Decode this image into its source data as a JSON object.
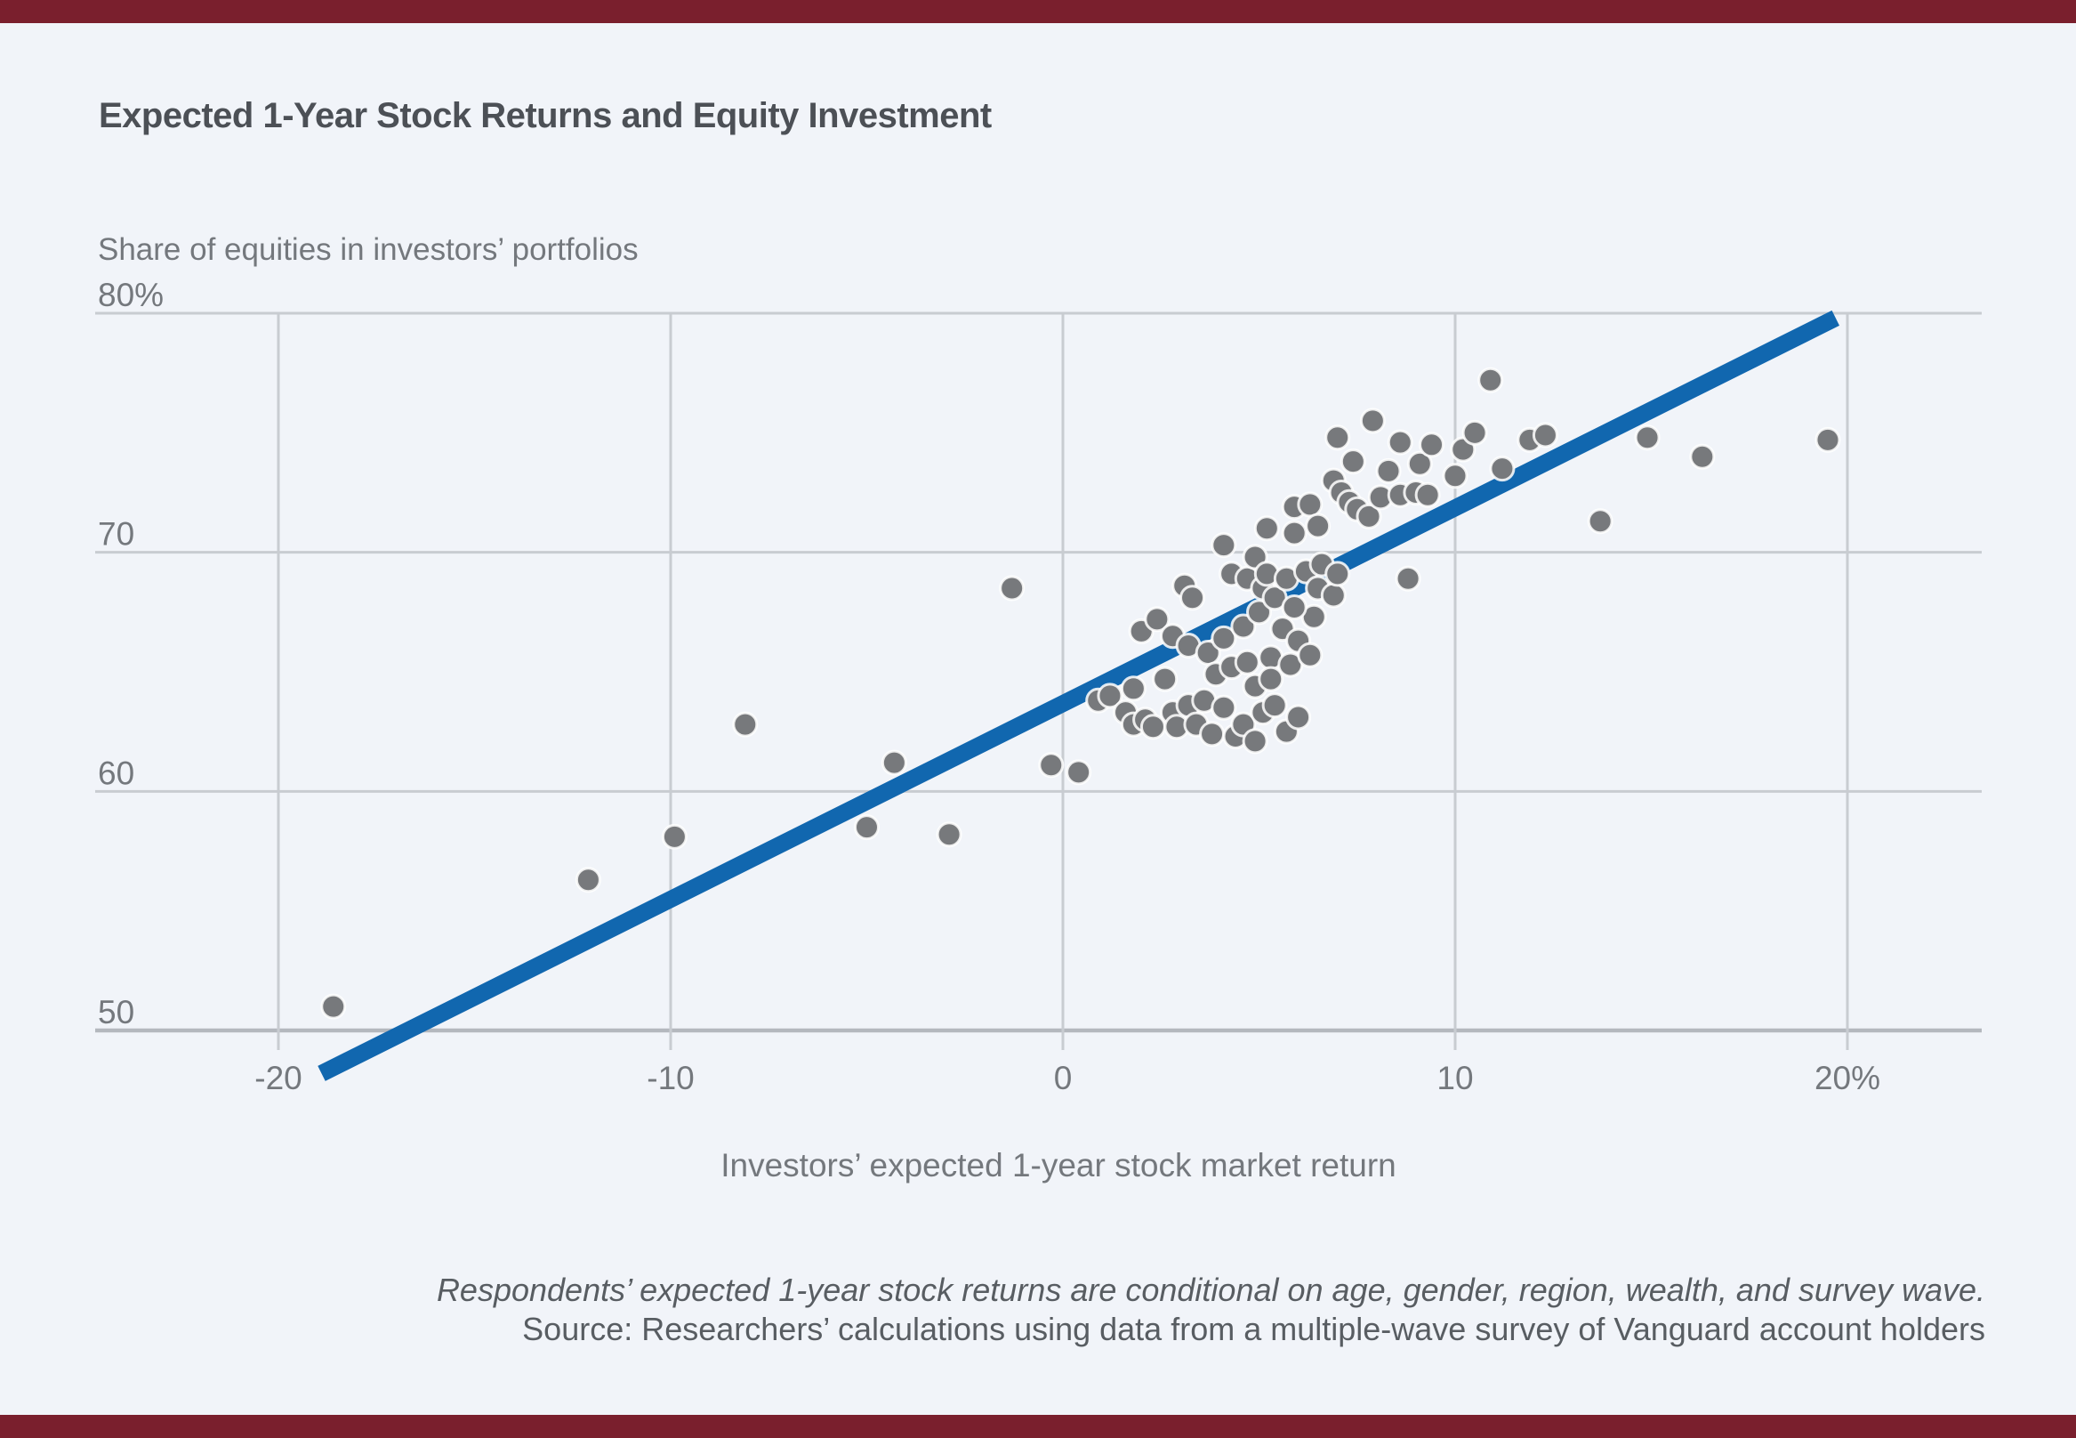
{
  "title": "Expected 1-Year Stock Returns and Equity Investment",
  "colors": {
    "background": "#f1f4f9",
    "accent_bar": "#7a1f2d",
    "gridline": "#c8ccd1",
    "axis_line": "#b4b8be",
    "point": "#77797c",
    "trend_line": "#1167af",
    "title_text": "#4c5056",
    "label_text": "#74787d",
    "footnote_text": "#585d62"
  },
  "chart_data": {
    "type": "scatter",
    "title": "Expected 1-Year Stock Returns and Equity Investment",
    "y_axis_title": "Share of equities in investors’ portfolios",
    "x_axis_title": "Investors’ expected 1-year stock market return",
    "footnote_line1": "Respondents’ expected 1-year stock returns are conditional on age, gender, region, wealth, and survey wave.",
    "footnote_line2": "Source: Researchers’ calculations using data from a multiple-wave survey of Vanguard account holders",
    "grid": true,
    "legend": "none",
    "xlim": [
      -24.7,
      23.4
    ],
    "ylim": [
      50,
      80
    ],
    "x_ticks": [
      {
        "label": "-20",
        "value": -20
      },
      {
        "label": "-10",
        "value": -10
      },
      {
        "label": "0",
        "value": 0
      },
      {
        "label": "10",
        "value": 10
      },
      {
        "label": "20%",
        "value": 20
      }
    ],
    "y_ticks": [
      {
        "label": "80%",
        "value": 80
      },
      {
        "label": "70",
        "value": 70
      },
      {
        "label": "60",
        "value": 60
      },
      {
        "label": "50",
        "value": 50
      }
    ],
    "trend_line": {
      "x1": -18.9,
      "y1": 48.2,
      "x2": 19.7,
      "y2": 79.8
    },
    "points": [
      [
        -18.6,
        51.0
      ],
      [
        -12.1,
        56.3
      ],
      [
        -9.9,
        58.1
      ],
      [
        -8.1,
        62.8
      ],
      [
        -5.0,
        58.5
      ],
      [
        -4.3,
        61.2
      ],
      [
        -2.9,
        58.2
      ],
      [
        -1.3,
        68.5
      ],
      [
        -0.3,
        61.1
      ],
      [
        0.4,
        60.8
      ],
      [
        0.9,
        63.8
      ],
      [
        1.2,
        64.0
      ],
      [
        1.6,
        63.3
      ],
      [
        1.8,
        64.3
      ],
      [
        1.8,
        62.8
      ],
      [
        2.1,
        63.0
      ],
      [
        2.3,
        62.7
      ],
      [
        2.6,
        64.7
      ],
      [
        2.8,
        63.3
      ],
      [
        2.9,
        62.7
      ],
      [
        3.2,
        63.6
      ],
      [
        3.4,
        62.8
      ],
      [
        3.6,
        63.8
      ],
      [
        3.8,
        62.4
      ],
      [
        4.1,
        63.5
      ],
      [
        4.4,
        62.3
      ],
      [
        4.6,
        62.8
      ],
      [
        4.9,
        62.1
      ],
      [
        5.1,
        63.3
      ],
      [
        5.4,
        63.6
      ],
      [
        5.7,
        62.5
      ],
      [
        6.0,
        63.1
      ],
      [
        2.0,
        66.7
      ],
      [
        2.4,
        67.2
      ],
      [
        2.8,
        66.5
      ],
      [
        3.2,
        66.1
      ],
      [
        3.7,
        65.8
      ],
      [
        3.9,
        64.9
      ],
      [
        4.1,
        66.4
      ],
      [
        4.3,
        65.2
      ],
      [
        4.6,
        66.9
      ],
      [
        4.7,
        65.4
      ],
      [
        4.9,
        64.4
      ],
      [
        5.0,
        67.5
      ],
      [
        5.3,
        65.6
      ],
      [
        5.3,
        64.7
      ],
      [
        5.6,
        66.8
      ],
      [
        5.8,
        65.3
      ],
      [
        6.0,
        66.3
      ],
      [
        6.3,
        65.7
      ],
      [
        6.4,
        67.3
      ],
      [
        3.1,
        68.6
      ],
      [
        3.3,
        68.1
      ],
      [
        4.1,
        70.3
      ],
      [
        4.3,
        69.1
      ],
      [
        4.7,
        68.9
      ],
      [
        4.9,
        69.8
      ],
      [
        5.1,
        68.5
      ],
      [
        5.2,
        69.1
      ],
      [
        5.4,
        68.1
      ],
      [
        5.7,
        68.9
      ],
      [
        5.9,
        67.7
      ],
      [
        6.2,
        69.2
      ],
      [
        6.6,
        69.5
      ],
      [
        6.5,
        68.5
      ],
      [
        6.9,
        68.2
      ],
      [
        7.0,
        69.1
      ],
      [
        8.8,
        68.9
      ],
      [
        5.2,
        71.0
      ],
      [
        5.9,
        70.8
      ],
      [
        5.9,
        71.9
      ],
      [
        6.3,
        72.0
      ],
      [
        6.5,
        71.1
      ],
      [
        6.9,
        73.0
      ],
      [
        7.1,
        72.5
      ],
      [
        7.3,
        72.1
      ],
      [
        7.4,
        73.8
      ],
      [
        7.5,
        71.8
      ],
      [
        7.8,
        71.5
      ],
      [
        8.1,
        72.3
      ],
      [
        8.3,
        73.4
      ],
      [
        8.6,
        72.4
      ],
      [
        9.0,
        72.5
      ],
      [
        9.3,
        72.4
      ],
      [
        9.1,
        73.7
      ],
      [
        10.0,
        73.2
      ],
      [
        10.2,
        74.3
      ],
      [
        11.2,
        73.5
      ],
      [
        7.0,
        74.8
      ],
      [
        7.9,
        75.5
      ],
      [
        8.6,
        74.6
      ],
      [
        9.4,
        74.5
      ],
      [
        10.5,
        75.0
      ],
      [
        10.9,
        77.2
      ],
      [
        11.9,
        74.7
      ],
      [
        12.3,
        74.9
      ],
      [
        13.7,
        71.3
      ],
      [
        14.9,
        74.8
      ],
      [
        16.3,
        74.0
      ],
      [
        19.5,
        74.7
      ]
    ]
  }
}
